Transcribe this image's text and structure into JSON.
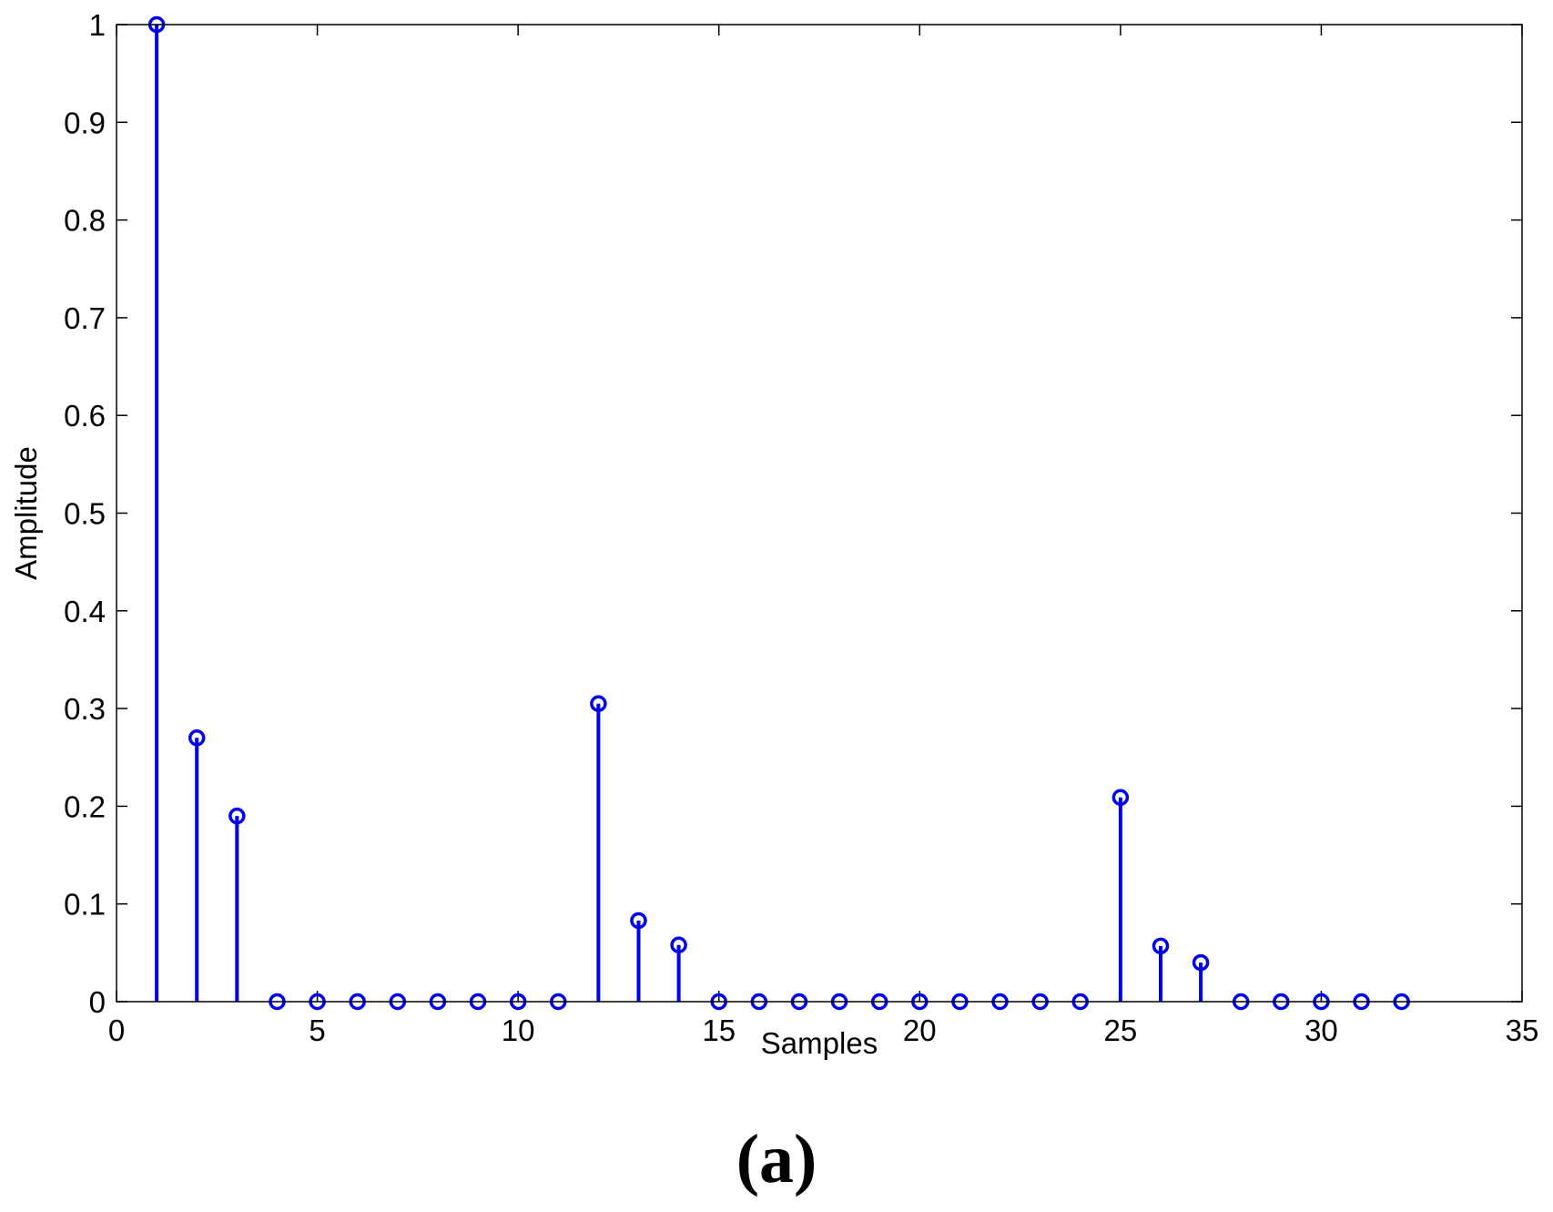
{
  "chart_data": {
    "type": "stem",
    "title": "",
    "xlabel": "Samples",
    "ylabel": "Amplitude",
    "xlim": [
      0,
      35
    ],
    "ylim": [
      0,
      1
    ],
    "xticks": [
      0,
      5,
      10,
      15,
      20,
      25,
      30,
      35
    ],
    "yticks": [
      0,
      0.1,
      0.2,
      0.3,
      0.4,
      0.5,
      0.6,
      0.7,
      0.8,
      0.9,
      1
    ],
    "grid": false,
    "color": "#0000ee",
    "x": [
      1,
      2,
      3,
      4,
      5,
      6,
      7,
      8,
      9,
      10,
      11,
      12,
      13,
      14,
      15,
      16,
      17,
      18,
      19,
      20,
      21,
      22,
      23,
      24,
      25,
      26,
      27,
      28,
      29,
      30,
      31,
      32
    ],
    "y": [
      1.0,
      0.27,
      0.19,
      0,
      0,
      0,
      0,
      0,
      0,
      0,
      0,
      0.305,
      0.083,
      0.058,
      0,
      0,
      0,
      0,
      0,
      0,
      0,
      0,
      0,
      0,
      0.209,
      0.057,
      0.04,
      0,
      0,
      0,
      0,
      0
    ]
  },
  "panel_label": "(a)"
}
